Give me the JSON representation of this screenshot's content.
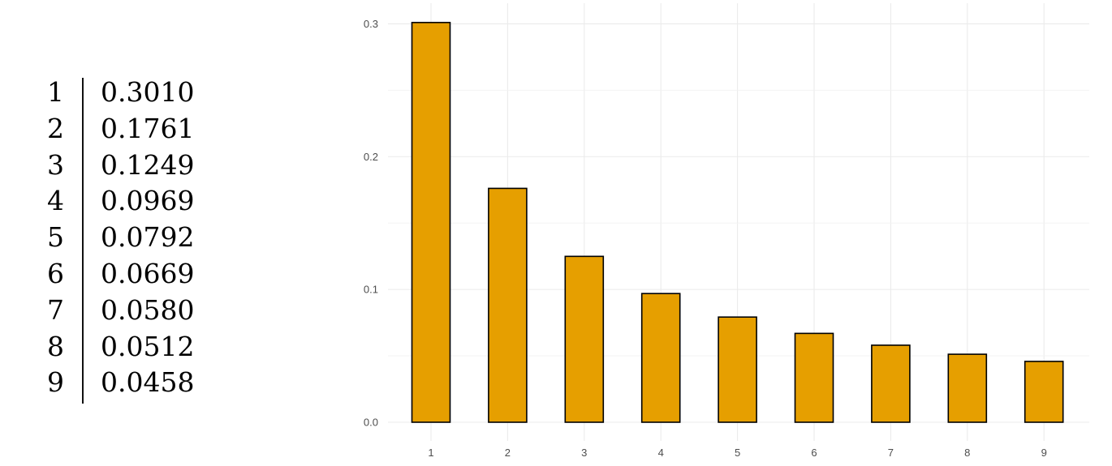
{
  "table": {
    "rows": [
      {
        "digit": "1",
        "prob": "0.3010"
      },
      {
        "digit": "2",
        "prob": "0.1761"
      },
      {
        "digit": "3",
        "prob": "0.1249"
      },
      {
        "digit": "4",
        "prob": "0.0969"
      },
      {
        "digit": "5",
        "prob": "0.0792"
      },
      {
        "digit": "6",
        "prob": "0.0669"
      },
      {
        "digit": "7",
        "prob": "0.0580"
      },
      {
        "digit": "8",
        "prob": "0.0512"
      },
      {
        "digit": "9",
        "prob": "0.0458"
      }
    ]
  },
  "chart_data": {
    "type": "bar",
    "categories": [
      "1",
      "2",
      "3",
      "4",
      "5",
      "6",
      "7",
      "8",
      "9"
    ],
    "values": [
      0.301,
      0.1761,
      0.1249,
      0.0969,
      0.0792,
      0.0669,
      0.058,
      0.0512,
      0.0458
    ],
    "yticks": [
      "0.0",
      "0.1",
      "0.2",
      "0.3"
    ],
    "ylim": [
      0,
      0.3
    ],
    "grid": true,
    "bar_color": "#E69F00",
    "bar_outline": "#000000",
    "grid_color": "#ebebeb"
  }
}
